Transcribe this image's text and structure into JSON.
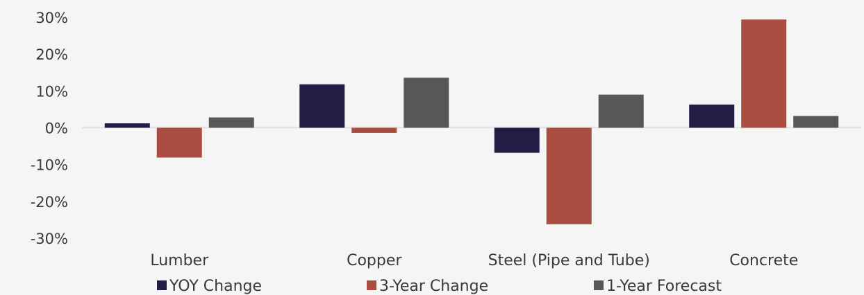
{
  "chart_data": {
    "type": "bar",
    "title": "",
    "xlabel": "",
    "ylabel": "",
    "categories": [
      "Lumber",
      "Copper",
      "Steel (Pipe and Tube)",
      "Concrete"
    ],
    "series": [
      {
        "name": "YOY Change",
        "color": "#221d44",
        "values": [
          1.2,
          11.8,
          -6.8,
          6.3
        ]
      },
      {
        "name": "3-Year Change",
        "color": "#a94d40",
        "values": [
          -8.1,
          -1.4,
          -26.2,
          29.4
        ]
      },
      {
        "name": "1-Year Forecast",
        "color": "#565857",
        "values": [
          2.8,
          13.6,
          9.0,
          3.2
        ]
      }
    ],
    "ylim": [
      -30,
      30
    ],
    "yticks": [
      "30%",
      "20%",
      "10%",
      "0%",
      "-10%",
      "-20%",
      "-30%"
    ],
    "ytick_values": [
      30,
      20,
      10,
      0,
      -10,
      -20,
      -30
    ],
    "grid": false,
    "legend_position": "bottom"
  }
}
